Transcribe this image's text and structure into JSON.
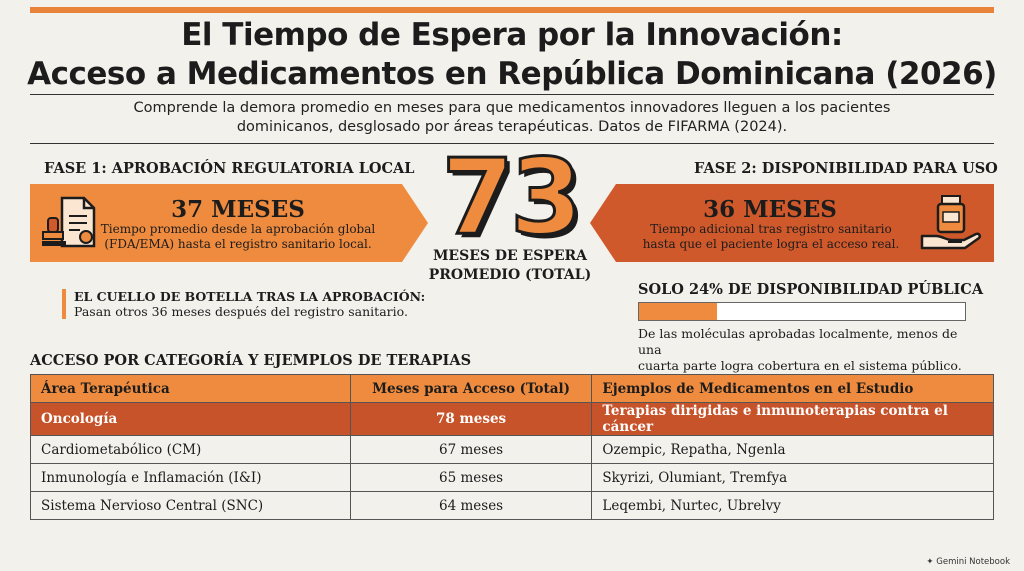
{
  "title": {
    "line1": "El Tiempo de Espera por la Innovación:",
    "line2": "Acceso a Medicamentos en República Dominicana (2026)"
  },
  "subtitle": {
    "line1": "Comprende la demora promedio en meses para que medicamentos innovadores lleguen a los pacientes",
    "line2": "dominicanos, desglosado por áreas terapéuticas. Datos de FIFARMA (2024)."
  },
  "phase1": {
    "title": "FASE 1: APROBACIÓN REGULATORIA LOCAL",
    "value": "37 MESES",
    "desc_line1": "Tiempo promedio desde la aprobación global",
    "desc_line2": "(FDA/EMA) hasta el registro sanitario local.",
    "icon": "document-stamp-icon",
    "color": "#ef8b3e"
  },
  "phase2": {
    "title": "FASE 2: DISPONIBILIDAD PARA USO",
    "value": "36 MESES",
    "desc_line1": "Tiempo adicional tras registro sanitario",
    "desc_line2": "hasta que el paciente logra el acceso real.",
    "icon": "hand-medicine-bottle-icon",
    "color": "#d0592b"
  },
  "total": {
    "value": "73",
    "label_line1": "MESES DE ESPERA",
    "label_line2": "PROMEDIO (TOTAL)"
  },
  "bottleneck": {
    "title": "EL CUELLO DE BOTELLA TRAS LA APROBACIÓN:",
    "text": "Pasan otros 36 meses después del registro sanitario."
  },
  "public_availability": {
    "title": "SOLO 24% DE DISPONIBILIDAD PÚBLICA",
    "percent": 24,
    "desc_line1": "De las moléculas aprobadas localmente, menos de una",
    "desc_line2": "cuarta parte logra cobertura en el sistema público."
  },
  "section_title": "ACCESO POR CATEGORÍA Y EJEMPLOS DE TERAPIAS",
  "table": {
    "headers": [
      "Área Terapéutica",
      "Meses para Acceso (Total)",
      "Ejemplos de Medicamentos en el Estudio"
    ],
    "rows": [
      [
        "Oncología",
        "78 meses",
        "Terapias dirigidas e inmunoterapias contra el cáncer"
      ],
      [
        "Cardiometabólico (CM)",
        "67 meses",
        "Ozempic, Repatha, Ngenla"
      ],
      [
        "Inmunología e Inflamación (I&I)",
        "65 meses",
        "Skyrizi, Olumiant, Tremfya"
      ],
      [
        "Sistema Nervioso Central (SNC)",
        "64 meses",
        "Leqembi, Nurtec, Ubrelvy"
      ]
    ]
  },
  "brand": "Gemini Notebook",
  "colors": {
    "accent": "#ef8b3e",
    "accent_dark": "#c7532a"
  }
}
